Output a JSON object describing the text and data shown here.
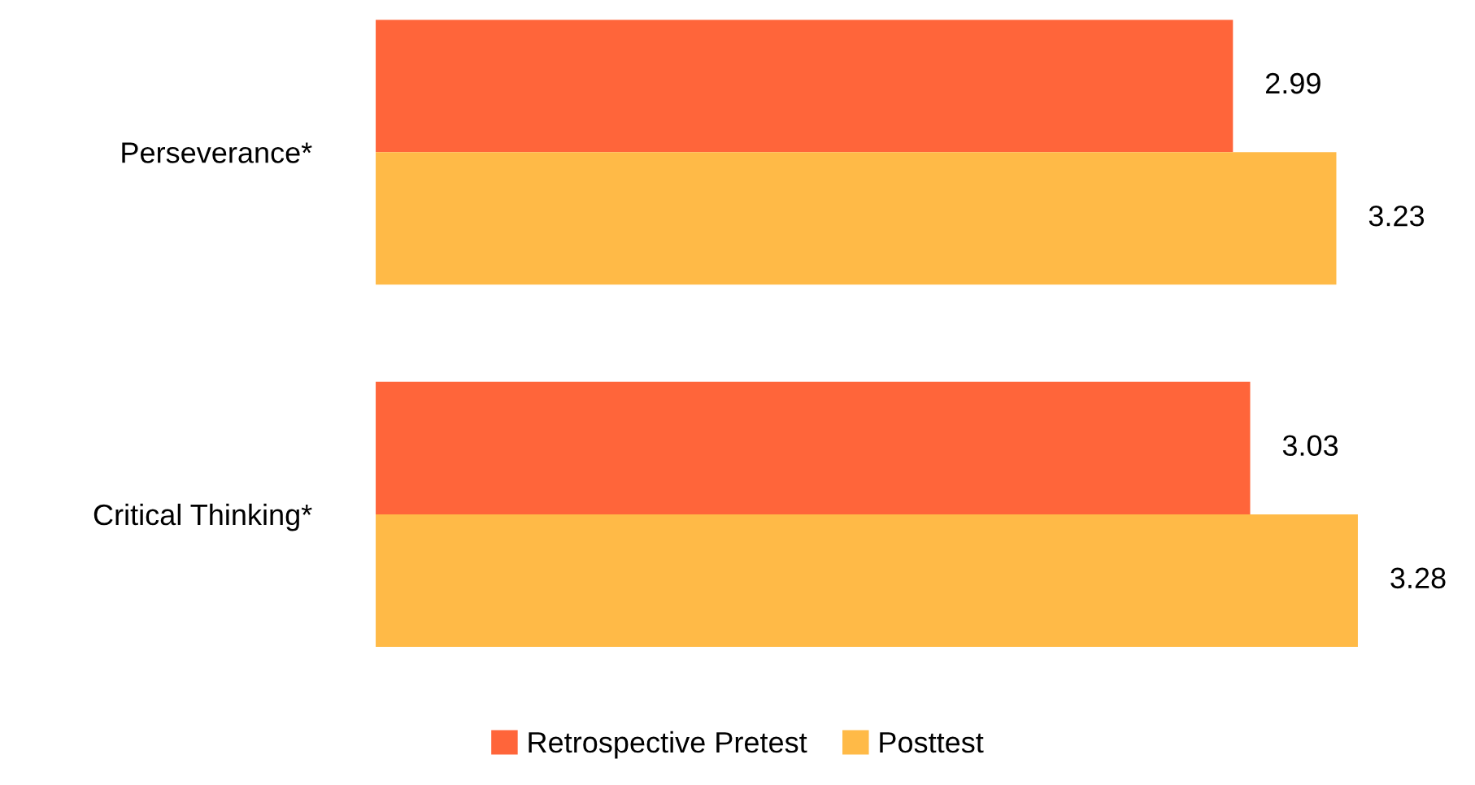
{
  "chart_data": {
    "type": "bar",
    "orientation": "horizontal",
    "categories": [
      "Perseverance*",
      "Critical Thinking*"
    ],
    "series": [
      {
        "name": "Retrospective Pretest",
        "color": "#ff653a",
        "values": [
          2.99,
          3.03
        ]
      },
      {
        "name": "Posttest",
        "color": "#ffba47",
        "values": [
          3.23,
          3.28
        ]
      }
    ],
    "xlim": [
      1,
      3.28
    ],
    "data_labels": true,
    "legend": "bottom",
    "grid": false,
    "tick_labels": "y"
  }
}
